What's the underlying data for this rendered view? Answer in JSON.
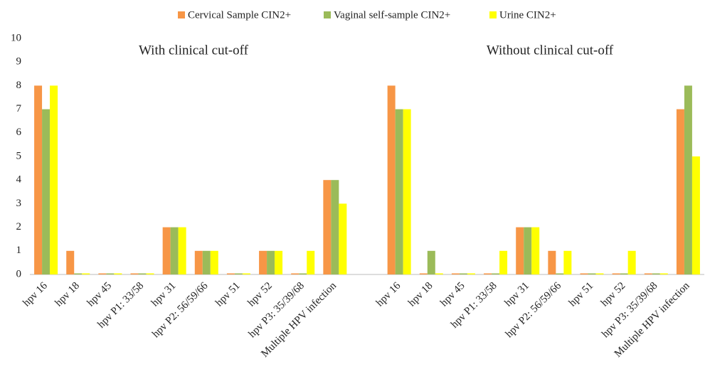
{
  "chart_data": {
    "type": "bar",
    "annotations": [
      "With clinical cut-off",
      "Without clinical cut-off"
    ],
    "categories": [
      "hpv 16",
      "hpv 18",
      "hpv 45",
      "hpv P1: 33/58",
      "hpv 31",
      "hpv P2: 56/59/66",
      "hpv 51",
      "hpv 52",
      "hpv P3: 35/39/68",
      "Multiple HPV infection",
      null,
      "hpv 16",
      "hpv 18",
      "hpv 45",
      "hpv P1: 33/58",
      "hpv 31",
      "hpv P2: 56/59/66",
      "hpv 51",
      "hpv 52",
      "hpv P3: 35/39/68",
      "Multiple HPV infection"
    ],
    "series": [
      {
        "name": "Cervical Sample CIN2+",
        "color": "#f79646",
        "values": [
          8,
          1,
          0,
          0,
          2,
          1,
          0,
          1,
          0,
          4,
          null,
          8,
          0,
          0,
          0,
          2,
          1,
          0,
          0,
          0,
          7
        ]
      },
      {
        "name": "Vaginal self-sample CIN2+",
        "color": "#9bbb59",
        "values": [
          7,
          0,
          0,
          0,
          2,
          1,
          0,
          1,
          0,
          4,
          null,
          7,
          1,
          0,
          0,
          2,
          0,
          0,
          0,
          0,
          8
        ]
      },
      {
        "name": "Urine CIN2+",
        "color": "#ffff00",
        "values": [
          8,
          0,
          0,
          0,
          2,
          1,
          0,
          1,
          1,
          3,
          null,
          7,
          0,
          0,
          1,
          2,
          1,
          0,
          1,
          0,
          5
        ]
      }
    ],
    "ylim": [
      0,
      10
    ],
    "yticks": [
      0,
      1,
      2,
      3,
      4,
      5,
      6,
      7,
      8,
      9,
      10
    ],
    "grid": false,
    "legend": "top"
  }
}
